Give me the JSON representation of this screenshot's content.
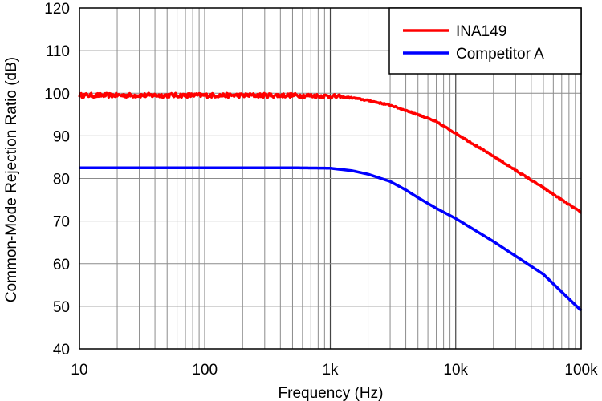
{
  "chart_data": {
    "type": "line",
    "title": "",
    "xlabel": "Frequency (Hz)",
    "ylabel": "Common-Mode Rejection Ratio (dB)",
    "xscale": "log",
    "xlim": [
      10,
      100000
    ],
    "ylim": [
      40,
      120
    ],
    "grid": true,
    "legend_position": "top-right",
    "x_ticks": [
      {
        "value": 10,
        "label": "10"
      },
      {
        "value": 100,
        "label": "100"
      },
      {
        "value": 1000,
        "label": "1k"
      },
      {
        "value": 10000,
        "label": "10k"
      },
      {
        "value": 100000,
        "label": "100k"
      }
    ],
    "y_ticks": [
      {
        "value": 40,
        "label": "40"
      },
      {
        "value": 50,
        "label": "50"
      },
      {
        "value": 60,
        "label": "60"
      },
      {
        "value": 70,
        "label": "70"
      },
      {
        "value": 80,
        "label": "80"
      },
      {
        "value": 90,
        "label": "90"
      },
      {
        "value": 100,
        "label": "100"
      },
      {
        "value": 110,
        "label": "110"
      },
      {
        "value": 120,
        "label": "120"
      }
    ],
    "series": [
      {
        "name": "INA149",
        "color": "#ff0000",
        "x": [
          10,
          20,
          50,
          100,
          200,
          500,
          1000,
          1500,
          2000,
          3000,
          5000,
          7000,
          10000,
          20000,
          50000,
          100000
        ],
        "values": [
          99.5,
          99.5,
          99.5,
          99.5,
          99.5,
          99.5,
          99.3,
          98.9,
          98.3,
          97.2,
          95.0,
          93.3,
          90.6,
          85.2,
          77.8,
          72.0
        ],
        "noise": 0.5
      },
      {
        "name": "Competitor A",
        "color": "#0000ff",
        "x": [
          10,
          100,
          500,
          1000,
          1500,
          2000,
          3000,
          4000,
          5000,
          7000,
          10000,
          20000,
          50000,
          100000
        ],
        "values": [
          82.5,
          82.5,
          82.5,
          82.4,
          81.8,
          81.0,
          79.3,
          77.3,
          75.5,
          73.0,
          70.6,
          65.2,
          57.5,
          49.0
        ],
        "noise": 0
      }
    ]
  }
}
